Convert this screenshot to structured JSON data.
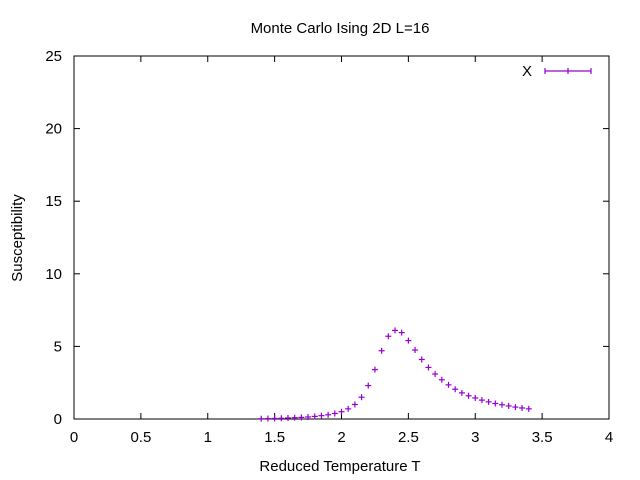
{
  "chart_data": {
    "type": "scatter",
    "title": "Monte Carlo Ising 2D L=16",
    "xlabel": "Reduced Temperature T",
    "ylabel": "Susceptibility",
    "xlim": [
      0,
      4
    ],
    "ylim": [
      0,
      25
    ],
    "xticks": [
      "0",
      "0.5",
      "1",
      "1.5",
      "2",
      "2.5",
      "3",
      "3.5",
      "4"
    ],
    "yticks": [
      "0",
      "5",
      "10",
      "15",
      "20",
      "25"
    ],
    "grid": false,
    "legend_position": "top-right",
    "series": [
      {
        "name": "X",
        "color": "#9400d3",
        "marker": "plus-with-errorbars",
        "points": [
          [
            1.4,
            0.02
          ],
          [
            1.45,
            0.03
          ],
          [
            1.5,
            0.04
          ],
          [
            1.55,
            0.05
          ],
          [
            1.6,
            0.07
          ],
          [
            1.65,
            0.09
          ],
          [
            1.7,
            0.11
          ],
          [
            1.75,
            0.14
          ],
          [
            1.8,
            0.18
          ],
          [
            1.85,
            0.23
          ],
          [
            1.9,
            0.29
          ],
          [
            1.95,
            0.38
          ],
          [
            2.0,
            0.5
          ],
          [
            2.05,
            0.7
          ],
          [
            2.1,
            1.0
          ],
          [
            2.15,
            1.5
          ],
          [
            2.2,
            2.3
          ],
          [
            2.25,
            3.4
          ],
          [
            2.3,
            4.7
          ],
          [
            2.35,
            5.7
          ],
          [
            2.4,
            6.1
          ],
          [
            2.45,
            5.95
          ],
          [
            2.5,
            5.4
          ],
          [
            2.55,
            4.75
          ],
          [
            2.6,
            4.1
          ],
          [
            2.65,
            3.55
          ],
          [
            2.7,
            3.1
          ],
          [
            2.75,
            2.7
          ],
          [
            2.8,
            2.35
          ],
          [
            2.85,
            2.05
          ],
          [
            2.9,
            1.8
          ],
          [
            2.95,
            1.6
          ],
          [
            3.0,
            1.45
          ],
          [
            3.05,
            1.3
          ],
          [
            3.1,
            1.18
          ],
          [
            3.15,
            1.07
          ],
          [
            3.2,
            0.98
          ],
          [
            3.25,
            0.9
          ],
          [
            3.3,
            0.82
          ],
          [
            3.35,
            0.76
          ],
          [
            3.4,
            0.7
          ]
        ]
      }
    ]
  }
}
